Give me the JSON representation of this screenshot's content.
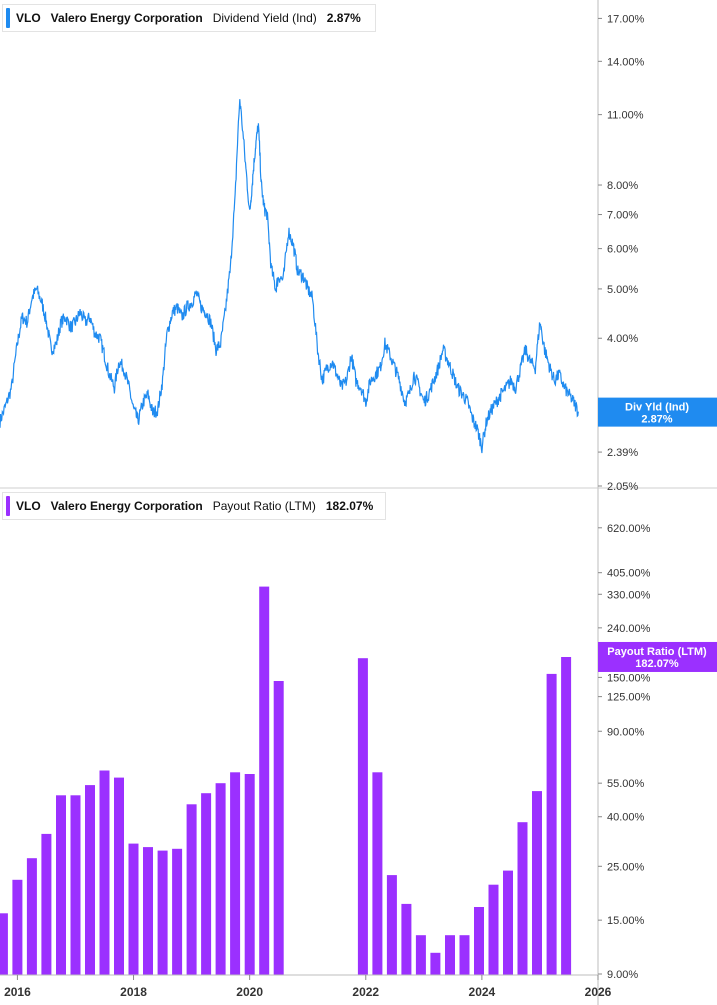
{
  "legend_top": {
    "ticker": "VLO",
    "company": "Valero Energy Corporation",
    "metric": "Dividend Yield (Ind)",
    "value": "2.87%",
    "color": "#1f8bf0"
  },
  "legend_bottom": {
    "ticker": "VLO",
    "company": "Valero Energy Corporation",
    "metric": "Payout Ratio (LTM)",
    "value": "182.07%",
    "color": "#9b30ff"
  },
  "tags": {
    "top_line1": "Div Yld (Ind)",
    "top_line2": "2.87%",
    "bottom_line1": "Payout Ratio (LTM)",
    "bottom_line2": "182.07%"
  },
  "chart_data": [
    {
      "type": "line",
      "scale": "log",
      "color": "#1f8bf0",
      "y_ticks": [
        "17.00%",
        "14.00%",
        "11.00%",
        "8.00%",
        "7.00%",
        "6.00%",
        "5.00%",
        "4.00%",
        "2.39%",
        "2.05%"
      ],
      "y_tick_values": [
        17,
        14,
        11,
        8,
        7,
        6,
        5,
        4,
        2.39,
        2.05
      ],
      "ylim": [
        2.05,
        17.5
      ],
      "xlim": [
        2015.7,
        2026.0
      ],
      "x": [
        2015.7,
        2015.8,
        2015.9,
        2016.0,
        2016.08,
        2016.17,
        2016.25,
        2016.33,
        2016.42,
        2016.5,
        2016.58,
        2016.67,
        2016.75,
        2016.83,
        2016.92,
        2017.0,
        2017.08,
        2017.17,
        2017.25,
        2017.33,
        2017.42,
        2017.5,
        2017.58,
        2017.67,
        2017.75,
        2017.83,
        2017.92,
        2018.0,
        2018.08,
        2018.17,
        2018.25,
        2018.33,
        2018.42,
        2018.5,
        2018.58,
        2018.67,
        2018.75,
        2018.83,
        2018.92,
        2019.0,
        2019.08,
        2019.17,
        2019.25,
        2019.33,
        2019.42,
        2019.5,
        2019.58,
        2019.67,
        2019.75,
        2019.83,
        2019.92,
        2020.0,
        2020.05,
        2020.1,
        2020.15,
        2020.2,
        2020.25,
        2020.3,
        2020.37,
        2020.45,
        2020.5,
        2020.58,
        2020.67,
        2020.75,
        2020.83,
        2020.92,
        2021.0,
        2021.08,
        2021.17,
        2021.25,
        2021.33,
        2021.42,
        2021.5,
        2021.58,
        2021.67,
        2021.75,
        2021.83,
        2021.92,
        2022.0,
        2022.08,
        2022.17,
        2022.25,
        2022.33,
        2022.42,
        2022.5,
        2022.58,
        2022.67,
        2022.75,
        2022.83,
        2022.92,
        2023.0,
        2023.08,
        2023.17,
        2023.25,
        2023.33,
        2023.42,
        2023.5,
        2023.58,
        2023.67,
        2023.75,
        2023.83,
        2023.92,
        2024.0,
        2024.08,
        2024.17,
        2024.25,
        2024.33,
        2024.42,
        2024.5,
        2024.58,
        2024.67,
        2024.75,
        2024.83,
        2024.92,
        2025.0,
        2025.08,
        2025.17,
        2025.25,
        2025.33,
        2025.42,
        2025.5,
        2025.58,
        2025.66
      ],
      "values": [
        2.75,
        2.95,
        3.2,
        3.9,
        4.4,
        4.3,
        4.8,
        5.0,
        4.7,
        4.3,
        3.8,
        3.9,
        4.3,
        4.4,
        4.2,
        4.3,
        4.5,
        4.3,
        4.4,
        4.1,
        4.0,
        3.7,
        3.4,
        3.2,
        3.6,
        3.5,
        3.2,
        2.9,
        2.75,
        3.0,
        3.1,
        2.85,
        2.9,
        3.3,
        4.1,
        4.5,
        4.6,
        4.4,
        4.6,
        4.7,
        4.9,
        4.6,
        4.5,
        4.3,
        3.8,
        3.9,
        4.5,
        5.5,
        7.5,
        11.8,
        9.0,
        7.0,
        8.2,
        9.5,
        10.5,
        8.0,
        7.2,
        7.0,
        5.5,
        5.0,
        5.3,
        5.2,
        6.5,
        6.1,
        5.4,
        5.3,
        5.0,
        4.8,
        3.8,
        3.3,
        3.5,
        3.6,
        3.4,
        3.2,
        3.3,
        3.7,
        3.3,
        3.2,
        3.0,
        3.3,
        3.4,
        3.5,
        3.9,
        3.7,
        3.5,
        3.3,
        3.0,
        3.1,
        3.4,
        3.2,
        3.0,
        3.1,
        3.3,
        3.5,
        3.8,
        3.6,
        3.4,
        3.2,
        3.1,
        3.0,
        2.8,
        2.65,
        2.45,
        2.75,
        2.9,
        3.0,
        3.1,
        3.2,
        3.3,
        3.2,
        3.5,
        3.8,
        3.6,
        3.5,
        4.3,
        3.8,
        3.5,
        3.3,
        3.4,
        3.2,
        3.1,
        3.0,
        2.87
      ]
    },
    {
      "type": "bar",
      "scale": "log",
      "color": "#9b30ff",
      "y_ticks": [
        "620.00%",
        "405.00%",
        "330.00%",
        "240.00%",
        "150.00%",
        "125.00%",
        "90.00%",
        "55.00%",
        "40.00%",
        "25.00%",
        "15.00%",
        "9.00%"
      ],
      "y_tick_values": [
        620,
        405,
        330,
        240,
        150,
        125,
        90,
        55,
        40,
        25,
        15,
        9
      ],
      "ylim": [
        9,
        700
      ],
      "xlim": [
        2015.7,
        2026.0
      ],
      "x_ticks": [
        "2016",
        "2018",
        "2020",
        "2022",
        "2024",
        "2026"
      ],
      "x_tick_values": [
        2016,
        2018,
        2020,
        2022,
        2024,
        2026
      ],
      "x": [
        2015.75,
        2016.0,
        2016.25,
        2016.5,
        2016.75,
        2017.0,
        2017.25,
        2017.5,
        2017.75,
        2018.0,
        2018.25,
        2018.5,
        2018.75,
        2019.0,
        2019.25,
        2019.5,
        2019.75,
        2020.0,
        2020.25,
        2020.5,
        2021.95,
        2022.2,
        2022.45,
        2022.7,
        2022.95,
        2023.2,
        2023.45,
        2023.7,
        2023.95,
        2024.2,
        2024.45,
        2024.7,
        2024.95,
        2025.2,
        2025.45
      ],
      "values": [
        16,
        22,
        27,
        34,
        49,
        49,
        54,
        62,
        58,
        31,
        30,
        29,
        29.5,
        45,
        50,
        55,
        61,
        60,
        355,
        145,
        180,
        61,
        23,
        17.5,
        13,
        11,
        13,
        13,
        17,
        21,
        24,
        38,
        51,
        155,
        182.07
      ]
    }
  ]
}
